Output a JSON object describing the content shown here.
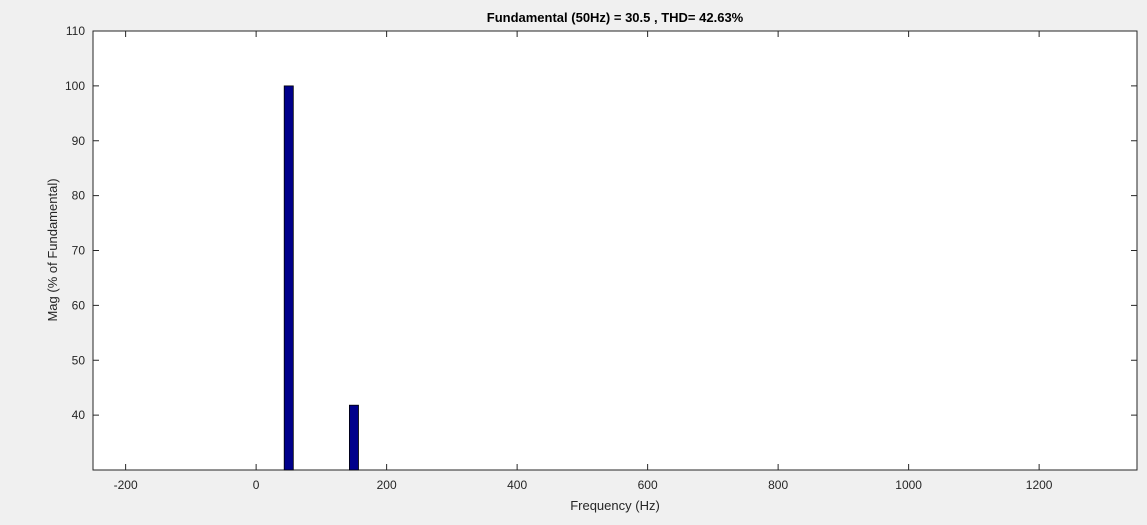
{
  "chart_data": {
    "type": "bar",
    "title": "Fundamental (50Hz) = 30.5 , THD= 42.63%",
    "xlabel": "Frequency (Hz)",
    "ylabel": "Mag (% of Fundamental)",
    "xlim": [
      -250,
      1350
    ],
    "ylim": [
      30,
      110
    ],
    "xticks": [
      -200,
      0,
      200,
      400,
      600,
      800,
      1000,
      1200
    ],
    "yticks": [
      40,
      50,
      60,
      70,
      80,
      90,
      100,
      110
    ],
    "bar_width": 14,
    "grid": false,
    "series": [
      {
        "x": [
          50,
          150
        ],
        "values": [
          100,
          41.8
        ]
      }
    ],
    "colors": {
      "bar_fill": "#00008b",
      "bar_edge": "#000000",
      "axes_background": "#ffffff",
      "figure_background": "#f0f0f0",
      "axis_color": "#262626"
    }
  }
}
